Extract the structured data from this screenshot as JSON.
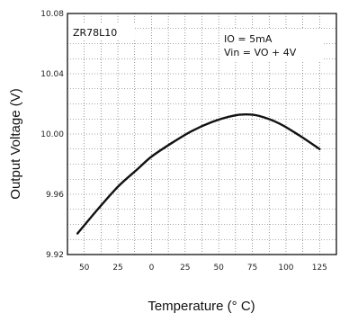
{
  "chart_data": {
    "type": "line",
    "part_number": "ZR78L10",
    "annotations": [
      "IO = 5mA",
      "Vin = VO + 4V"
    ],
    "xlabel": "Temperature (° C)",
    "ylabel": "Output Voltage (V)",
    "x_ticks": [
      -50,
      -25,
      0,
      25,
      50,
      75,
      100,
      125
    ],
    "x_tick_labels": [
      "50",
      "25",
      "0",
      "25",
      "50",
      "75",
      "100",
      "125"
    ],
    "y_ticks": [
      9.92,
      9.96,
      10.0,
      10.04,
      10.08
    ],
    "y_tick_labels": [
      "9.92",
      "9.96",
      "10.00",
      "10.04",
      "10.08"
    ],
    "xlim": [
      -62.5,
      137.5
    ],
    "ylim": [
      9.92,
      10.08
    ],
    "grid": true,
    "series": [
      {
        "x": [
          -55,
          -40,
          -25,
          -10,
          0,
          15,
          30,
          45,
          60,
          70,
          80,
          95,
          110,
          125
        ],
        "y": [
          9.934,
          9.95,
          9.965,
          9.977,
          9.985,
          9.994,
          10.002,
          10.008,
          10.012,
          10.013,
          10.012,
          10.007,
          9.999,
          9.99
        ]
      }
    ]
  }
}
